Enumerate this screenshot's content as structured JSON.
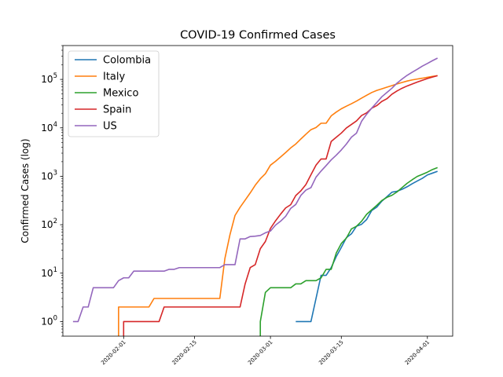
{
  "chart_data": {
    "type": "line",
    "title": "COVID-19 Confirmed Cases",
    "xlabel": "",
    "ylabel": "Confirmed Cases (log)",
    "yscale": "log",
    "xlim": [
      "2020-01-20",
      "2020-04-06"
    ],
    "ylim": [
      0.5,
      500000
    ],
    "grid": false,
    "legend_position": "upper left",
    "x_ticks": [
      "2020-02-01",
      "2020-02-15",
      "2020-03-01",
      "2020-03-15",
      "2020-04-01"
    ],
    "y_ticks": [
      {
        "value": 1,
        "base": "10",
        "exp": "0"
      },
      {
        "value": 10,
        "base": "10",
        "exp": "1"
      },
      {
        "value": 100,
        "base": "10",
        "exp": "2"
      },
      {
        "value": 1000,
        "base": "10",
        "exp": "3"
      },
      {
        "value": 10000,
        "base": "10",
        "exp": "4"
      },
      {
        "value": 100000,
        "base": "10",
        "exp": "5"
      }
    ],
    "series": [
      {
        "name": "Colombia",
        "color": "#1f77b4",
        "points": [
          [
            "2020-03-06",
            1
          ],
          [
            "2020-03-09",
            1
          ],
          [
            "2020-03-11",
            9
          ],
          [
            "2020-03-12",
            9
          ],
          [
            "2020-03-13",
            13
          ],
          [
            "2020-03-14",
            22
          ],
          [
            "2020-03-15",
            34
          ],
          [
            "2020-03-16",
            54
          ],
          [
            "2020-03-17",
            65
          ],
          [
            "2020-03-18",
            93
          ],
          [
            "2020-03-19",
            102
          ],
          [
            "2020-03-20",
            128
          ],
          [
            "2020-03-21",
            196
          ],
          [
            "2020-03-22",
            231
          ],
          [
            "2020-03-23",
            306
          ],
          [
            "2020-03-24",
            378
          ],
          [
            "2020-03-25",
            470
          ],
          [
            "2020-03-26",
            491
          ],
          [
            "2020-03-27",
            539
          ],
          [
            "2020-03-28",
            608
          ],
          [
            "2020-03-29",
            702
          ],
          [
            "2020-03-30",
            798
          ],
          [
            "2020-03-31",
            906
          ],
          [
            "2020-04-01",
            1065
          ],
          [
            "2020-04-02",
            1161
          ],
          [
            "2020-04-03",
            1267
          ]
        ]
      },
      {
        "name": "Italy",
        "color": "#ff7f0e",
        "points": [
          [
            "2020-01-31",
            0.4
          ],
          [
            "2020-01-31",
            2
          ],
          [
            "2020-02-06",
            2
          ],
          [
            "2020-02-07",
            3
          ],
          [
            "2020-02-20",
            3
          ],
          [
            "2020-02-21",
            20
          ],
          [
            "2020-02-22",
            62
          ],
          [
            "2020-02-23",
            155
          ],
          [
            "2020-02-24",
            229
          ],
          [
            "2020-02-25",
            322
          ],
          [
            "2020-02-26",
            453
          ],
          [
            "2020-02-27",
            655
          ],
          [
            "2020-02-28",
            888
          ],
          [
            "2020-02-29",
            1128
          ],
          [
            "2020-03-01",
            1694
          ],
          [
            "2020-03-02",
            2036
          ],
          [
            "2020-03-03",
            2502
          ],
          [
            "2020-03-04",
            3089
          ],
          [
            "2020-03-05",
            3858
          ],
          [
            "2020-03-06",
            4636
          ],
          [
            "2020-03-07",
            5883
          ],
          [
            "2020-03-08",
            7375
          ],
          [
            "2020-03-09",
            9172
          ],
          [
            "2020-03-10",
            10149
          ],
          [
            "2020-03-11",
            12462
          ],
          [
            "2020-03-12",
            12462
          ],
          [
            "2020-03-13",
            17660
          ],
          [
            "2020-03-14",
            21157
          ],
          [
            "2020-03-15",
            24747
          ],
          [
            "2020-03-16",
            27980
          ],
          [
            "2020-03-17",
            31506
          ],
          [
            "2020-03-18",
            35713
          ],
          [
            "2020-03-19",
            41035
          ],
          [
            "2020-03-20",
            47021
          ],
          [
            "2020-03-21",
            53578
          ],
          [
            "2020-03-22",
            59138
          ],
          [
            "2020-03-23",
            63927
          ],
          [
            "2020-03-24",
            69176
          ],
          [
            "2020-03-25",
            74386
          ],
          [
            "2020-03-26",
            80589
          ],
          [
            "2020-03-27",
            86498
          ],
          [
            "2020-03-28",
            92472
          ],
          [
            "2020-03-29",
            97689
          ],
          [
            "2020-03-30",
            101739
          ],
          [
            "2020-03-31",
            105792
          ],
          [
            "2020-04-01",
            110574
          ],
          [
            "2020-04-02",
            115242
          ],
          [
            "2020-04-03",
            119827
          ]
        ]
      },
      {
        "name": "Mexico",
        "color": "#2ca02c",
        "points": [
          [
            "2020-02-28",
            0.4
          ],
          [
            "2020-02-28",
            1
          ],
          [
            "2020-02-29",
            4
          ],
          [
            "2020-03-01",
            5
          ],
          [
            "2020-03-05",
            5
          ],
          [
            "2020-03-06",
            6
          ],
          [
            "2020-03-07",
            6
          ],
          [
            "2020-03-08",
            7
          ],
          [
            "2020-03-10",
            7
          ],
          [
            "2020-03-11",
            8
          ],
          [
            "2020-03-12",
            12
          ],
          [
            "2020-03-13",
            12
          ],
          [
            "2020-03-14",
            26
          ],
          [
            "2020-03-15",
            41
          ],
          [
            "2020-03-16",
            53
          ],
          [
            "2020-03-17",
            82
          ],
          [
            "2020-03-18",
            93
          ],
          [
            "2020-03-19",
            118
          ],
          [
            "2020-03-20",
            164
          ],
          [
            "2020-03-21",
            203
          ],
          [
            "2020-03-22",
            251
          ],
          [
            "2020-03-23",
            316
          ],
          [
            "2020-03-24",
            367
          ],
          [
            "2020-03-25",
            405
          ],
          [
            "2020-03-26",
            475
          ],
          [
            "2020-03-27",
            585
          ],
          [
            "2020-03-28",
            717
          ],
          [
            "2020-03-29",
            848
          ],
          [
            "2020-03-30",
            993
          ],
          [
            "2020-03-31",
            1094
          ],
          [
            "2020-04-01",
            1215
          ],
          [
            "2020-04-02",
            1378
          ],
          [
            "2020-04-03",
            1510
          ]
        ]
      },
      {
        "name": "Spain",
        "color": "#d62728",
        "points": [
          [
            "2020-02-01",
            0.4
          ],
          [
            "2020-02-01",
            1
          ],
          [
            "2020-02-08",
            1
          ],
          [
            "2020-02-09",
            2
          ],
          [
            "2020-02-24",
            2
          ],
          [
            "2020-02-25",
            6
          ],
          [
            "2020-02-26",
            13
          ],
          [
            "2020-02-27",
            15
          ],
          [
            "2020-02-28",
            32
          ],
          [
            "2020-02-29",
            45
          ],
          [
            "2020-03-01",
            84
          ],
          [
            "2020-03-02",
            120
          ],
          [
            "2020-03-03",
            165
          ],
          [
            "2020-03-04",
            222
          ],
          [
            "2020-03-05",
            259
          ],
          [
            "2020-03-06",
            400
          ],
          [
            "2020-03-07",
            500
          ],
          [
            "2020-03-08",
            673
          ],
          [
            "2020-03-09",
            1073
          ],
          [
            "2020-03-10",
            1695
          ],
          [
            "2020-03-11",
            2277
          ],
          [
            "2020-03-12",
            2277
          ],
          [
            "2020-03-13",
            5232
          ],
          [
            "2020-03-14",
            6391
          ],
          [
            "2020-03-15",
            7798
          ],
          [
            "2020-03-16",
            9942
          ],
          [
            "2020-03-17",
            11748
          ],
          [
            "2020-03-18",
            13910
          ],
          [
            "2020-03-19",
            17963
          ],
          [
            "2020-03-20",
            20410
          ],
          [
            "2020-03-21",
            25374
          ],
          [
            "2020-03-22",
            28768
          ],
          [
            "2020-03-23",
            35136
          ],
          [
            "2020-03-24",
            39885
          ],
          [
            "2020-03-25",
            49515
          ],
          [
            "2020-03-26",
            57786
          ],
          [
            "2020-03-27",
            65719
          ],
          [
            "2020-03-28",
            73235
          ],
          [
            "2020-03-29",
            80110
          ],
          [
            "2020-03-30",
            87956
          ],
          [
            "2020-03-31",
            95923
          ],
          [
            "2020-04-01",
            104118
          ],
          [
            "2020-04-02",
            112065
          ],
          [
            "2020-04-03",
            119199
          ]
        ]
      },
      {
        "name": "US",
        "color": "#9467bd",
        "points": [
          [
            "2020-01-22",
            1
          ],
          [
            "2020-01-23",
            1
          ],
          [
            "2020-01-24",
            2
          ],
          [
            "2020-01-25",
            2
          ],
          [
            "2020-01-26",
            5
          ],
          [
            "2020-01-30",
            5
          ],
          [
            "2020-01-31",
            7
          ],
          [
            "2020-02-01",
            8
          ],
          [
            "2020-02-02",
            8
          ],
          [
            "2020-02-03",
            11
          ],
          [
            "2020-02-09",
            11
          ],
          [
            "2020-02-10",
            12
          ],
          [
            "2020-02-11",
            12
          ],
          [
            "2020-02-12",
            13
          ],
          [
            "2020-02-20",
            13
          ],
          [
            "2020-02-21",
            15
          ],
          [
            "2020-02-23",
            15
          ],
          [
            "2020-02-24",
            51
          ],
          [
            "2020-02-25",
            51
          ],
          [
            "2020-02-26",
            57
          ],
          [
            "2020-02-27",
            58
          ],
          [
            "2020-02-28",
            60
          ],
          [
            "2020-02-29",
            68
          ],
          [
            "2020-03-01",
            74
          ],
          [
            "2020-03-02",
            98
          ],
          [
            "2020-03-03",
            118
          ],
          [
            "2020-03-04",
            149
          ],
          [
            "2020-03-05",
            217
          ],
          [
            "2020-03-06",
            262
          ],
          [
            "2020-03-07",
            402
          ],
          [
            "2020-03-08",
            518
          ],
          [
            "2020-03-09",
            583
          ],
          [
            "2020-03-10",
            959
          ],
          [
            "2020-03-11",
            1281
          ],
          [
            "2020-03-12",
            1663
          ],
          [
            "2020-03-13",
            2179
          ],
          [
            "2020-03-14",
            2727
          ],
          [
            "2020-03-15",
            3499
          ],
          [
            "2020-03-16",
            4632
          ],
          [
            "2020-03-17",
            6421
          ],
          [
            "2020-03-18",
            7786
          ],
          [
            "2020-03-19",
            13680
          ],
          [
            "2020-03-20",
            19101
          ],
          [
            "2020-03-21",
            25493
          ],
          [
            "2020-03-22",
            33276
          ],
          [
            "2020-03-23",
            43847
          ],
          [
            "2020-03-24",
            53740
          ],
          [
            "2020-03-25",
            65778
          ],
          [
            "2020-03-26",
            83836
          ],
          [
            "2020-03-27",
            101657
          ],
          [
            "2020-03-28",
            121478
          ],
          [
            "2020-03-29",
            140886
          ],
          [
            "2020-03-30",
            161807
          ],
          [
            "2020-03-31",
            188172
          ],
          [
            "2020-04-01",
            213242
          ],
          [
            "2020-04-02",
            243622
          ],
          [
            "2020-04-03",
            275367
          ]
        ]
      }
    ]
  }
}
